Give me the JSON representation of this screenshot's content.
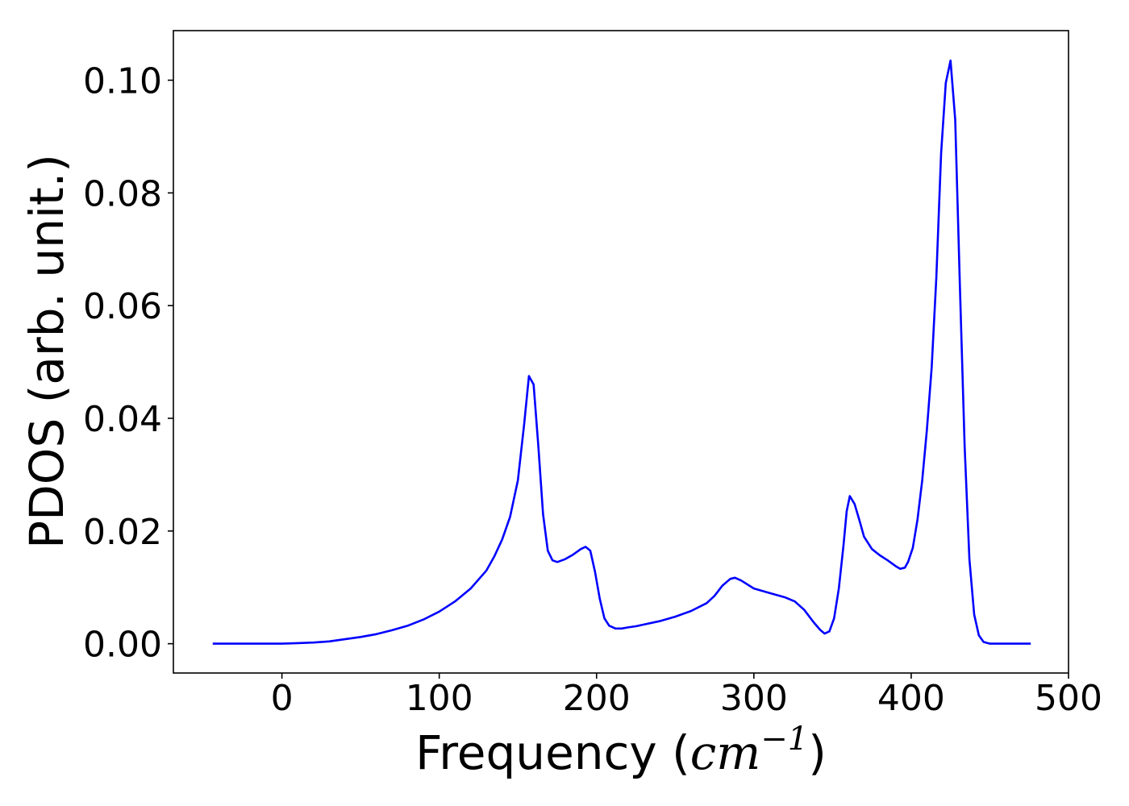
{
  "chart_data": {
    "type": "line",
    "xlabel": "Frequency (",
    "xlabel_unit_base": "cm",
    "xlabel_unit_exp": "−1",
    "xlabel_close": ")",
    "ylabel": "PDOS (arb. unit.)",
    "xlim": [
      -69,
      500
    ],
    "ylim": [
      -0.0052,
      0.1088
    ],
    "xticks": [
      0,
      100,
      200,
      300,
      400,
      500
    ],
    "xtick_labels": [
      "0",
      "100",
      "200",
      "300",
      "400",
      "500"
    ],
    "yticks": [
      0.0,
      0.02,
      0.04,
      0.06,
      0.08,
      0.1
    ],
    "ytick_labels": [
      "0.00",
      "0.02",
      "0.04",
      "0.06",
      "0.08",
      "0.10"
    ],
    "grid": false,
    "series": [
      {
        "color": "#0000ff",
        "x": [
          -44,
          0,
          10,
          20,
          30,
          40,
          50,
          60,
          70,
          80,
          90,
          100,
          110,
          120,
          130,
          135,
          140,
          145,
          150,
          154,
          157,
          160,
          163,
          166,
          169,
          172,
          175,
          180,
          185,
          190,
          193,
          196,
          199,
          202,
          205,
          208,
          212,
          216,
          220,
          225,
          230,
          240,
          250,
          260,
          270,
          275,
          280,
          285,
          288,
          292,
          300,
          310,
          320,
          326,
          332,
          338,
          342,
          345,
          348,
          351,
          354,
          357,
          359,
          361,
          364,
          367,
          370,
          375,
          380,
          385,
          390,
          393,
          396,
          398,
          401,
          404,
          407,
          410,
          413,
          416,
          419,
          422,
          425,
          428,
          431,
          434,
          437,
          440,
          443,
          446,
          450,
          460,
          476
        ],
        "y": [
          0.0,
          0.0,
          0.0001,
          0.0002,
          0.0004,
          0.0008,
          0.0012,
          0.0017,
          0.0024,
          0.0032,
          0.0043,
          0.0057,
          0.0075,
          0.0098,
          0.013,
          0.0155,
          0.0185,
          0.0225,
          0.029,
          0.039,
          0.0475,
          0.046,
          0.035,
          0.023,
          0.0165,
          0.0148,
          0.0145,
          0.015,
          0.0158,
          0.0168,
          0.0172,
          0.0165,
          0.0128,
          0.008,
          0.0045,
          0.0032,
          0.0027,
          0.0027,
          0.0029,
          0.0031,
          0.0034,
          0.004,
          0.0048,
          0.0058,
          0.0072,
          0.0085,
          0.0103,
          0.0115,
          0.0117,
          0.0112,
          0.0098,
          0.009,
          0.0082,
          0.0075,
          0.006,
          0.0038,
          0.0025,
          0.0018,
          0.0022,
          0.0045,
          0.0098,
          0.0175,
          0.0235,
          0.0262,
          0.0248,
          0.022,
          0.019,
          0.0168,
          0.0157,
          0.0148,
          0.0138,
          0.0133,
          0.0135,
          0.0145,
          0.017,
          0.022,
          0.029,
          0.038,
          0.049,
          0.065,
          0.087,
          0.0995,
          0.1035,
          0.093,
          0.063,
          0.035,
          0.015,
          0.0052,
          0.0015,
          0.0003,
          0.0,
          0.0,
          0.0
        ]
      }
    ]
  }
}
